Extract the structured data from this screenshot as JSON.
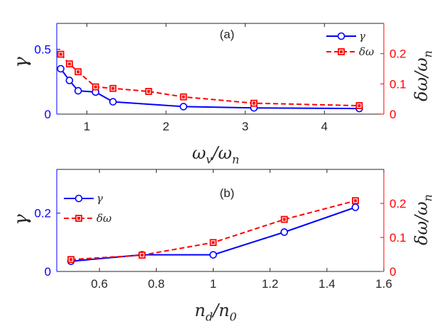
{
  "chart_data": [
    {
      "id": "a",
      "type": "line",
      "panel_label": "(a)",
      "xlabel": "ωv/ωn",
      "xlim": [
        0.62,
        4.75
      ],
      "xticks": [
        1,
        2,
        3,
        4
      ],
      "xtick_labels": [
        "1",
        "2",
        "3",
        "4"
      ],
      "ylabel_left": "γ",
      "ylim_left": [
        0,
        0.7
      ],
      "yticks_left": [
        0,
        0.5
      ],
      "ytick_labels_left": [
        "0",
        "0.5"
      ],
      "ylabel_right": "δω/ωn",
      "ylim_right": [
        0,
        0.3
      ],
      "yticks_right": [
        0,
        0.1,
        0.2
      ],
      "ytick_labels_right": [
        "0",
        "0.1",
        "0.2"
      ],
      "legend": {
        "position": "top-right",
        "entries": [
          "γ",
          "δω"
        ]
      },
      "series": [
        {
          "name": "γ",
          "axis": "left",
          "color": "#0000ff",
          "marker": "circle",
          "line": "solid",
          "x": [
            0.67,
            0.78,
            0.89,
            1.11,
            1.33,
            2.22,
            3.11,
            4.44
          ],
          "values": [
            0.35,
            0.26,
            0.18,
            0.17,
            0.095,
            0.058,
            0.048,
            0.043
          ]
        },
        {
          "name": "δω",
          "axis": "right",
          "color": "#ff0000",
          "marker": "square",
          "line": "dashed",
          "x": [
            0.67,
            0.78,
            0.89,
            1.11,
            1.33,
            1.78,
            2.22,
            3.11,
            4.44
          ],
          "values": [
            0.198,
            0.166,
            0.14,
            0.09,
            0.085,
            0.075,
            0.057,
            0.036,
            0.028
          ]
        }
      ]
    },
    {
      "id": "b",
      "type": "line",
      "panel_label": "(b)",
      "xlabel": "nd/n0",
      "xlim": [
        0.45,
        1.6
      ],
      "xticks": [
        0.6,
        0.8,
        1.0,
        1.2,
        1.4,
        1.6
      ],
      "xtick_labels": [
        "0.6",
        "0.8",
        "1",
        "1.2",
        "1.4",
        "1.6"
      ],
      "ylabel_left": "γ",
      "ylim_left": [
        0,
        0.35
      ],
      "yticks_left": [
        0,
        0.2
      ],
      "ytick_labels_left": [
        "0",
        "0.2"
      ],
      "ylabel_right": "δω/ωn",
      "ylim_right": [
        0,
        0.3
      ],
      "yticks_right": [
        0,
        0.1,
        0.2
      ],
      "ytick_labels_right": [
        "0",
        "0.1",
        "0.2"
      ],
      "legend": {
        "position": "top-left",
        "entries": [
          "γ",
          "δω"
        ]
      },
      "series": [
        {
          "name": "γ",
          "axis": "left",
          "color": "#0000ff",
          "marker": "circle",
          "line": "solid",
          "x": [
            0.5,
            0.75,
            1.0,
            1.25,
            1.5
          ],
          "values": [
            0.035,
            0.057,
            0.057,
            0.135,
            0.22
          ]
        },
        {
          "name": "δω",
          "axis": "right",
          "color": "#ff0000",
          "marker": "square",
          "line": "dashed",
          "x": [
            0.5,
            0.75,
            1.0,
            1.25,
            1.5
          ],
          "values": [
            0.035,
            0.048,
            0.085,
            0.153,
            0.208
          ]
        }
      ]
    }
  ]
}
